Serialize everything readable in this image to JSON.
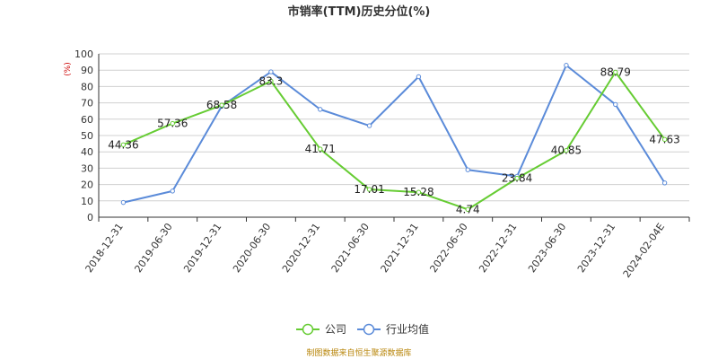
{
  "chart_data": {
    "type": "line",
    "title": "市销率(TTM)历史分位(%)",
    "ylabel": "(%)",
    "xlabel": "",
    "ylim": [
      0,
      100
    ],
    "yticks": [
      0,
      10,
      20,
      30,
      40,
      50,
      60,
      70,
      80,
      90,
      100
    ],
    "grid": true,
    "legend_position": "bottom-center",
    "categories": [
      "2018-12-31",
      "2019-06-30",
      "2019-12-31",
      "2020-06-30",
      "2020-12-31",
      "2021-06-30",
      "2021-12-31",
      "2022-06-30",
      "2022-12-31",
      "2023-06-30",
      "2023-12-31",
      "2024-02-04E"
    ],
    "series": [
      {
        "name": "公司",
        "color": "#66cc33",
        "values": [
          44.36,
          57.36,
          68.58,
          83.3,
          41.71,
          17.01,
          15.28,
          4.74,
          23.84,
          40.85,
          88.79,
          47.63
        ],
        "labels": [
          "44.36",
          "57.36",
          "68.58",
          "83.3",
          "41.71",
          "17.01",
          "15.28",
          "4.74",
          "23.84",
          "40.85",
          "88.79",
          "47.63"
        ]
      },
      {
        "name": "行业均值",
        "color": "#5b8bd9",
        "values": [
          9,
          16,
          68,
          89,
          66,
          56,
          86,
          29,
          25,
          93,
          69,
          21
        ]
      }
    ]
  },
  "footer": {
    "source": "制图数据来自恒生聚源数据库"
  }
}
